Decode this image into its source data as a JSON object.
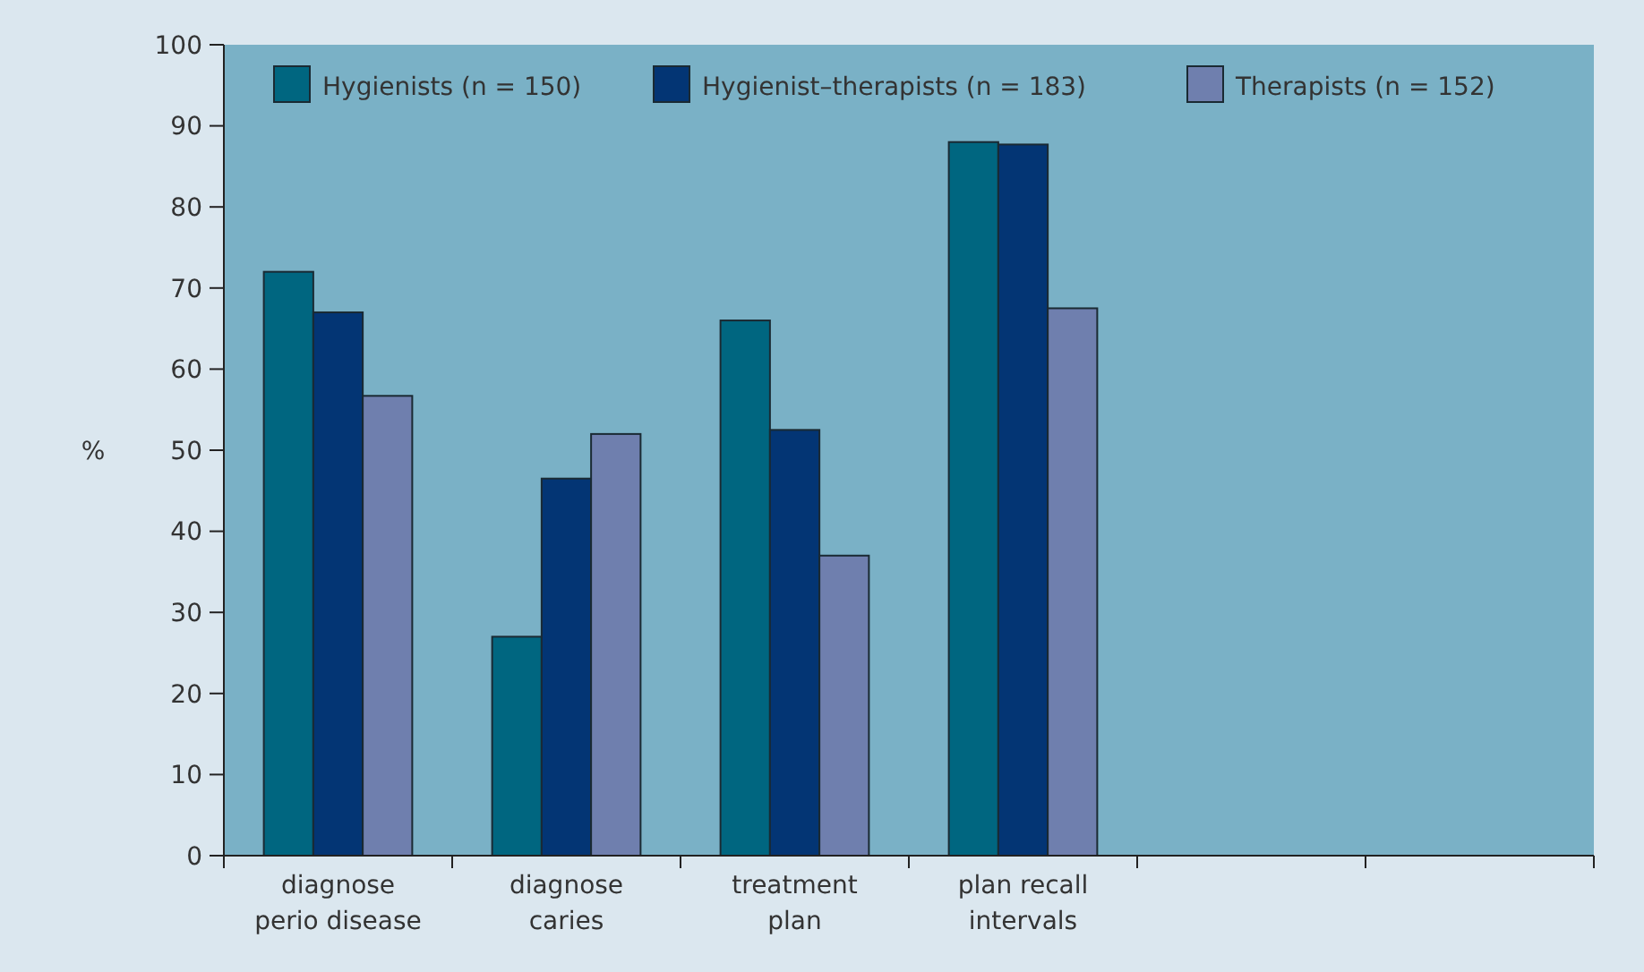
{
  "chart_data": {
    "type": "bar",
    "ylabel": "%",
    "categories": [
      "diagnose\nperio disease",
      "diagnose\ncaries",
      "treatment\nplan",
      "plan recall\nintervals",
      null,
      null
    ],
    "series": [
      {
        "name": "Hygienists (n = 150)",
        "color": "#006680",
        "values": [
          72,
          27,
          66,
          88,
          null,
          null
        ]
      },
      {
        "name": "Hygienist–therapists (n = 183)",
        "color": "#033574",
        "values": [
          67,
          46.5,
          52.5,
          87.7,
          null,
          null
        ]
      },
      {
        "name": "Therapists (n = 152)",
        "color": "#6f7fae",
        "values": [
          56.7,
          52,
          37,
          67.5,
          null,
          null
        ]
      }
    ],
    "ylim": [
      0,
      100
    ],
    "yticks": [
      0,
      10,
      20,
      30,
      40,
      50,
      60,
      70,
      80,
      90,
      100
    ],
    "grid": false,
    "legend": "top"
  }
}
